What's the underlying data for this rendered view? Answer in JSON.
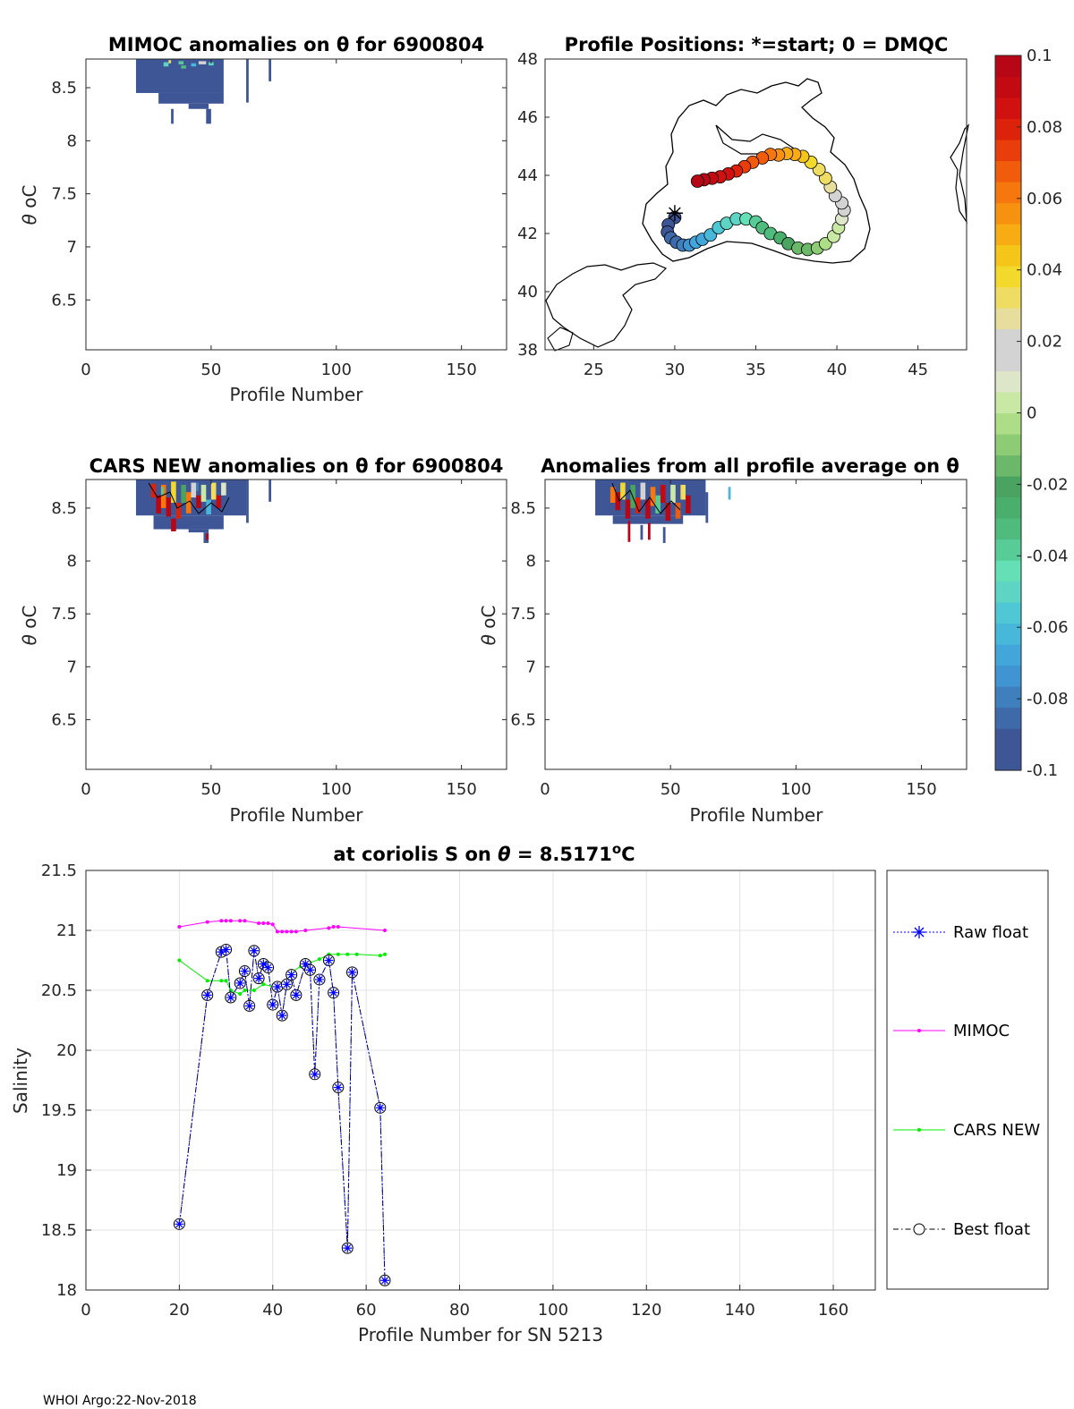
{
  "figure": {
    "footer": "WHOI Argo:22-Nov-2018",
    "theta_symbol": "θ",
    "theta_unit": "oC"
  },
  "colors": {
    "tile_blue": "#3e5696",
    "raw_float": "#0000ff",
    "mimoc": "#ff00ff",
    "cars": "#00ee00",
    "best_float": "#000000",
    "grid": "#e3e3e3",
    "axis": "#262626"
  },
  "colorbar": {
    "ticks": [
      "0.1",
      "0.08",
      "0.06",
      "0.04",
      "0.02",
      "0",
      "-0.02",
      "-0.04",
      "-0.06",
      "-0.08",
      "-0.1"
    ],
    "min": -0.1,
    "max": 0.1,
    "levels": [
      "#3e5696",
      "#3e5696",
      "#3e6aa9",
      "#3f7fbd",
      "#4094d1",
      "#43a6da",
      "#47b7da",
      "#50c7d4",
      "#5ed4c5",
      "#64dfb6",
      "#58cc96",
      "#4fbc7e",
      "#4aae6c",
      "#4aa360",
      "#6bb86a",
      "#8dcb74",
      "#addd86",
      "#c9e8a4",
      "#dde6c8",
      "#d3d3d3",
      "#d3d3d3",
      "#e7dd9c",
      "#efdc63",
      "#f2d92b",
      "#f5c519",
      "#f7ac14",
      "#f79110",
      "#f6770d",
      "#f15b0c",
      "#e93e0b",
      "#dd220c",
      "#d0110f",
      "#c30a12",
      "#b70615"
    ]
  },
  "chart_data": [
    {
      "id": "mimoc_anomalies",
      "type": "heatmap",
      "title": "MIMOC anomalies on θ  for 6900804",
      "xlabel": "Profile Number",
      "ylabel": "θ oC",
      "xlim": [
        0,
        168
      ],
      "ylim": [
        6.03,
        8.77
      ],
      "xticks": [
        0,
        50,
        100,
        150
      ],
      "yticks": [
        6.5,
        7,
        7.5,
        8,
        8.5
      ],
      "cells_note": "colour values are anomaly levels on the colorbar scale",
      "cells": [
        [
          20,
          55,
          8.45,
          8.77,
          -0.1
        ],
        [
          29,
          55,
          8.35,
          8.45,
          -0.1
        ],
        [
          41,
          49,
          8.3,
          8.35,
          -0.1
        ],
        [
          34,
          35,
          8.16,
          8.3,
          -0.1
        ],
        [
          48,
          50,
          8.16,
          8.3,
          -0.1
        ],
        [
          64,
          65,
          8.36,
          8.77,
          -0.1
        ],
        [
          73,
          74,
          8.56,
          8.77,
          -0.1
        ],
        [
          31,
          33,
          8.7,
          8.74,
          -0.05
        ],
        [
          37,
          39,
          8.72,
          8.75,
          -0.04
        ],
        [
          42,
          44,
          8.7,
          8.73,
          -0.06
        ],
        [
          45,
          48,
          8.72,
          8.75,
          0.02
        ],
        [
          38,
          40,
          8.68,
          8.71,
          -0.03
        ],
        [
          49,
          51,
          8.71,
          8.74,
          -0.05
        ],
        [
          33,
          34,
          8.73,
          8.76,
          0.03
        ]
      ]
    },
    {
      "id": "profile_positions",
      "type": "scatter",
      "title": "Profile Positions: *=start; 0 = DMQC",
      "xlim": [
        22,
        48
      ],
      "ylim": [
        38,
        48
      ],
      "xticks": [
        25,
        30,
        35,
        40,
        45
      ],
      "yticks": [
        38,
        40,
        42,
        44,
        46,
        48
      ],
      "start": [
        30.0,
        42.7
      ],
      "track": [
        [
          30.0,
          42.55
        ],
        [
          29.6,
          42.3
        ],
        [
          29.55,
          42.05
        ],
        [
          29.75,
          41.85
        ],
        [
          30.1,
          41.7
        ],
        [
          30.5,
          41.6
        ],
        [
          30.9,
          41.6
        ],
        [
          31.3,
          41.7
        ],
        [
          31.7,
          41.8
        ],
        [
          32.2,
          41.95
        ],
        [
          32.7,
          42.2
        ],
        [
          33.2,
          42.35
        ],
        [
          33.8,
          42.5
        ],
        [
          34.4,
          42.5
        ],
        [
          35.0,
          42.4
        ],
        [
          35.4,
          42.2
        ],
        [
          35.9,
          42.0
        ],
        [
          36.5,
          41.85
        ],
        [
          37.0,
          41.65
        ],
        [
          37.6,
          41.5
        ],
        [
          38.2,
          41.45
        ],
        [
          38.8,
          41.5
        ],
        [
          39.3,
          41.65
        ],
        [
          39.8,
          41.9
        ],
        [
          40.1,
          42.2
        ],
        [
          40.3,
          42.5
        ],
        [
          40.45,
          42.8
        ],
        [
          40.3,
          43.05
        ],
        [
          39.9,
          43.3
        ],
        [
          39.6,
          43.6
        ],
        [
          39.3,
          43.9
        ],
        [
          38.9,
          44.2
        ],
        [
          38.4,
          44.45
        ],
        [
          37.9,
          44.65
        ],
        [
          37.4,
          44.72
        ],
        [
          36.9,
          44.75
        ],
        [
          36.4,
          44.7
        ],
        [
          35.9,
          44.72
        ],
        [
          35.4,
          44.6
        ],
        [
          34.8,
          44.45
        ],
        [
          34.3,
          44.3
        ],
        [
          33.8,
          44.15
        ],
        [
          33.3,
          44.05
        ],
        [
          32.8,
          43.95
        ],
        [
          32.3,
          43.9
        ],
        [
          31.8,
          43.85
        ],
        [
          31.4,
          43.8
        ]
      ]
    },
    {
      "id": "cars_anomalies",
      "type": "heatmap",
      "title": "CARS NEW anomalies on θ for 6900804",
      "xlabel": "Profile Number",
      "ylabel": "θ oC",
      "xlim": [
        0,
        168
      ],
      "ylim": [
        6.03,
        8.77
      ],
      "xticks": [
        0,
        50,
        100,
        150
      ],
      "yticks": [
        6.5,
        7,
        7.5,
        8,
        8.5
      ],
      "cells": [
        [
          20,
          64,
          8.43,
          8.77,
          -0.1
        ],
        [
          64,
          65,
          8.36,
          8.77,
          -0.1
        ],
        [
          73,
          74,
          8.56,
          8.77,
          -0.1
        ],
        [
          27,
          55,
          8.3,
          8.43,
          -0.1
        ],
        [
          41,
          49,
          8.27,
          8.3,
          -0.1
        ],
        [
          47,
          49,
          8.17,
          8.27,
          -0.1
        ],
        [
          26,
          28,
          8.6,
          8.73,
          0.08
        ],
        [
          28,
          30,
          8.45,
          8.62,
          0.1
        ],
        [
          30,
          32,
          8.5,
          8.72,
          0.06
        ],
        [
          32,
          34,
          8.42,
          8.6,
          0.1
        ],
        [
          34,
          36,
          8.55,
          8.75,
          0.04
        ],
        [
          36,
          38,
          8.4,
          8.55,
          0.08
        ],
        [
          38,
          40,
          8.55,
          8.72,
          -0.02
        ],
        [
          40,
          42,
          8.45,
          8.65,
          0.06
        ],
        [
          42,
          44,
          8.6,
          8.74,
          0.02
        ],
        [
          44,
          46,
          8.5,
          8.62,
          0.1
        ],
        [
          46,
          48,
          8.56,
          8.72,
          0.0
        ],
        [
          48,
          50,
          8.44,
          8.58,
          -0.06
        ],
        [
          50,
          52,
          8.58,
          8.74,
          0.03
        ],
        [
          52,
          54,
          8.5,
          8.62,
          0.09
        ],
        [
          54,
          56,
          8.62,
          8.74,
          0.01
        ],
        [
          34,
          36,
          8.28,
          8.4,
          0.1
        ],
        [
          48,
          49,
          8.2,
          8.26,
          0.1
        ],
        [
          30,
          31,
          8.62,
          8.7,
          -0.04
        ],
        [
          44,
          45,
          8.66,
          8.74,
          -0.08
        ]
      ]
    },
    {
      "id": "all_profile_anomalies",
      "type": "heatmap",
      "title": "Anomalies from all profile average on θ",
      "xlabel": "Profile Number",
      "ylabel": "θ oC",
      "xlim": [
        0,
        168
      ],
      "ylim": [
        6.03,
        8.77
      ],
      "xticks": [
        0,
        50,
        100,
        150
      ],
      "yticks": [
        6.5,
        7,
        7.5,
        8,
        8.5
      ],
      "cells": [
        [
          20,
          64,
          8.43,
          8.77,
          -0.1
        ],
        [
          64,
          65,
          8.36,
          8.65,
          -0.1
        ],
        [
          73,
          74,
          8.58,
          8.7,
          -0.06
        ],
        [
          27,
          55,
          8.35,
          8.43,
          -0.1
        ],
        [
          26,
          28,
          8.55,
          8.7,
          0.06
        ],
        [
          28,
          30,
          8.48,
          8.65,
          0.1
        ],
        [
          30,
          32,
          8.58,
          8.74,
          0.04
        ],
        [
          32,
          34,
          8.4,
          8.58,
          0.1
        ],
        [
          34,
          36,
          8.5,
          8.72,
          -0.02
        ],
        [
          36,
          38,
          8.45,
          8.6,
          0.08
        ],
        [
          38,
          40,
          8.58,
          8.74,
          0.02
        ],
        [
          40,
          42,
          8.4,
          8.58,
          0.1
        ],
        [
          42,
          44,
          8.52,
          8.7,
          0.06
        ],
        [
          44,
          46,
          8.45,
          8.62,
          -0.04
        ],
        [
          46,
          48,
          8.55,
          8.72,
          0.09
        ],
        [
          48,
          50,
          8.38,
          8.55,
          0.1
        ],
        [
          50,
          52,
          8.55,
          8.72,
          0.0
        ],
        [
          52,
          54,
          8.4,
          8.55,
          0.07
        ],
        [
          54,
          56,
          8.58,
          8.72,
          0.03
        ],
        [
          56,
          58,
          8.45,
          8.62,
          0.1
        ],
        [
          33,
          34,
          8.18,
          8.38,
          0.1
        ],
        [
          38,
          39,
          8.2,
          8.34,
          -0.1
        ],
        [
          41,
          42,
          8.2,
          8.36,
          0.1
        ],
        [
          47,
          48,
          8.17,
          8.32,
          -0.1
        ]
      ]
    },
    {
      "id": "salinity_series",
      "type": "line",
      "title": "at coriolis S on θ = 8.5171oC",
      "xlabel": "Profile Number for SN 5213",
      "ylabel": "Salinity",
      "xlim": [
        0,
        169
      ],
      "ylim": [
        18,
        21.5
      ],
      "xticks": [
        0,
        20,
        40,
        60,
        80,
        100,
        120,
        140,
        160
      ],
      "yticks": [
        18,
        18.5,
        19,
        19.5,
        20,
        20.5,
        21,
        21.5
      ],
      "grid": true,
      "legend_position": "outside-right",
      "series": [
        {
          "name": "Raw float",
          "marker": "star",
          "linestyle": "dotted",
          "x": [
            20,
            26,
            29,
            30,
            31,
            33,
            34,
            35,
            36,
            37,
            38,
            39,
            40,
            41,
            42,
            43,
            44,
            45,
            47,
            48,
            49,
            50,
            52,
            53,
            54,
            56,
            57,
            63,
            64
          ],
          "y": [
            18.55,
            20.46,
            20.82,
            20.84,
            20.44,
            20.56,
            20.66,
            20.37,
            20.83,
            20.6,
            20.72,
            20.69,
            20.38,
            20.53,
            20.29,
            20.55,
            20.63,
            20.46,
            20.72,
            20.67,
            19.8,
            20.59,
            20.75,
            20.48,
            19.69,
            18.35,
            20.65,
            19.52,
            18.08
          ]
        },
        {
          "name": "MIMOC",
          "marker": "dot",
          "linestyle": "solid",
          "x": [
            20,
            26,
            29,
            30,
            31,
            33,
            34,
            37,
            38,
            39,
            40,
            41,
            42,
            43,
            44,
            45,
            47,
            52,
            53,
            54,
            64
          ],
          "y": [
            21.03,
            21.07,
            21.08,
            21.08,
            21.08,
            21.08,
            21.08,
            21.06,
            21.06,
            21.06,
            21.05,
            20.99,
            20.99,
            20.99,
            20.99,
            20.99,
            21.0,
            21.02,
            21.03,
            21.03,
            21.0
          ]
        },
        {
          "name": "CARS NEW",
          "marker": "dot",
          "linestyle": "solid",
          "x": [
            20,
            26,
            29,
            30,
            31,
            33,
            34,
            36,
            38,
            40,
            42,
            44,
            46,
            48,
            50,
            52,
            54,
            56,
            58,
            63,
            64
          ],
          "y": [
            20.75,
            20.58,
            20.58,
            20.58,
            20.5,
            20.47,
            20.5,
            20.5,
            20.55,
            20.53,
            20.55,
            20.65,
            20.7,
            20.73,
            20.76,
            20.8,
            20.8,
            20.8,
            20.8,
            20.79,
            20.8
          ]
        },
        {
          "name": "Best float",
          "marker": "circle",
          "linestyle": "dashdot",
          "x": [
            20,
            26,
            29,
            30,
            31,
            33,
            34,
            35,
            36,
            37,
            38,
            39,
            40,
            41,
            42,
            43,
            44,
            45,
            47,
            48,
            49,
            50,
            52,
            53,
            54,
            56,
            57,
            63,
            64
          ],
          "y": [
            18.55,
            20.46,
            20.82,
            20.84,
            20.44,
            20.56,
            20.66,
            20.37,
            20.83,
            20.6,
            20.72,
            20.69,
            20.38,
            20.53,
            20.29,
            20.55,
            20.63,
            20.46,
            20.72,
            20.67,
            19.8,
            20.59,
            20.75,
            20.48,
            19.69,
            18.35,
            20.65,
            19.52,
            18.08
          ]
        }
      ]
    }
  ]
}
